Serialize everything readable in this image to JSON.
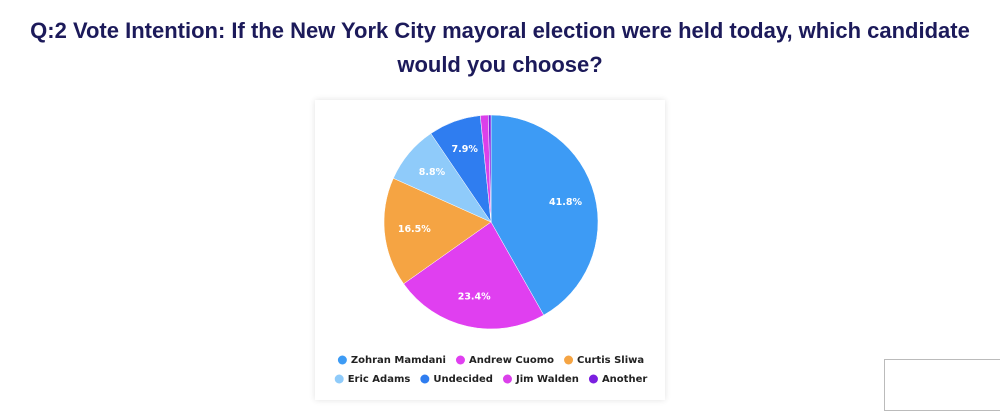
{
  "chart_data": {
    "type": "pie",
    "title": "Q:2 Vote Intention: If the New York City mayoral election were held today, which candidate would you choose?",
    "categories": [
      "Zohran Mamdani",
      "Andrew Cuomo",
      "Curtis Sliwa",
      "Eric Adams",
      "Undecided",
      "Jim Walden",
      "Another"
    ],
    "values": [
      41.8,
      23.4,
      16.5,
      8.8,
      7.9,
      1.2,
      0.4
    ],
    "value_labels": [
      "41.8%",
      "23.4%",
      "16.5%",
      "8.8%",
      "7.9%",
      null,
      null
    ],
    "colors": [
      "#3d9bf5",
      "#e03ff0",
      "#f5a443",
      "#8fcbfa",
      "#2f7df0",
      "#db40ea",
      "#7b1fe0"
    ]
  }
}
